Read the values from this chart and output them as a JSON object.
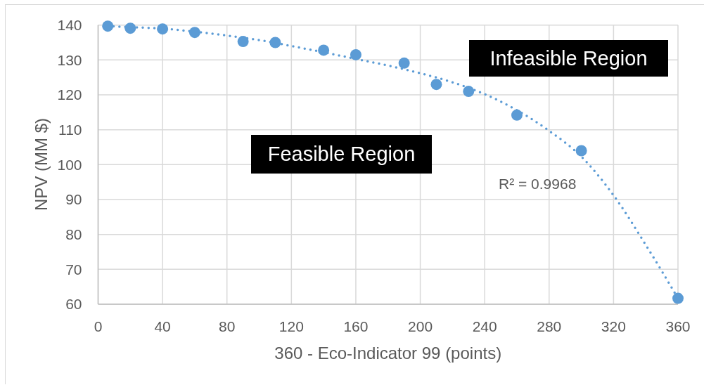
{
  "chart_data": {
    "type": "scatter",
    "xlabel": "360 - Eco-Indicator 99 (points)",
    "ylabel": "NPV (MM $)",
    "x": [
      6,
      20,
      40,
      60,
      90,
      110,
      140,
      160,
      190,
      210,
      230,
      260,
      300,
      360
    ],
    "series": [
      {
        "type": "scatter",
        "color": "#5b9bd5",
        "marker": "circle",
        "values": [
          139.7,
          139.1,
          138.9,
          137.9,
          135.3,
          135.0,
          132.8,
          131.5,
          129.1,
          123.0,
          121.0,
          114.2,
          104.0,
          61.7
        ]
      },
      {
        "type": "line",
        "color": "#5b9bd5",
        "marker": "none",
        "line_style": "dotted",
        "x": [
          6,
          20,
          40,
          60,
          80,
          100,
          120,
          140,
          160,
          180,
          200,
          220,
          240,
          260,
          280,
          300,
          320,
          340,
          360
        ],
        "values": [
          139.7,
          139.4,
          139.0,
          138.1,
          137.0,
          135.7,
          134.0,
          132.2,
          130.3,
          128.4,
          126.2,
          123.6,
          120.2,
          115.6,
          109.7,
          102.3,
          91.2,
          77.0,
          61.7
        ]
      }
    ],
    "xlim": [
      0,
      360
    ],
    "xticks": [
      0,
      40,
      80,
      120,
      160,
      200,
      240,
      280,
      320,
      360
    ],
    "ylim": [
      60,
      140
    ],
    "yticks": [
      60,
      70,
      80,
      90,
      100,
      110,
      120,
      130,
      140
    ],
    "grid": true,
    "annotations": [
      "Infeasible Region",
      "Feasible Region",
      "R² = 0.9968"
    ]
  }
}
